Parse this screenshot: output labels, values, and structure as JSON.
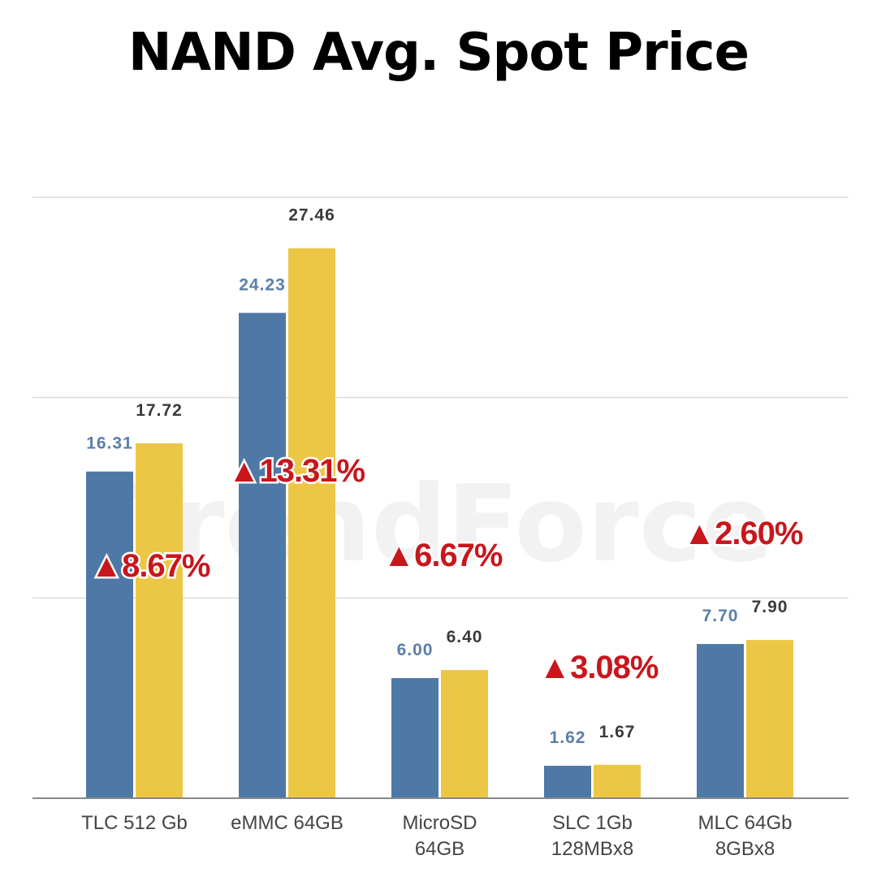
{
  "title": "NAND Avg. Spot Price",
  "watermark": "TrendForce",
  "colors": {
    "series_previous": "#4e79a7",
    "series_current": "#ecc745",
    "label_previous": "#5a7fa8",
    "label_current": "#3a3a3a",
    "change_text": "#c8161d",
    "gridline": "#dcdcdc",
    "axis": "#888888"
  },
  "chart_data": {
    "type": "bar",
    "title": "NAND Avg. Spot Price",
    "xlabel": "",
    "ylabel": "",
    "ylim": [
      0,
      30
    ],
    "grid": true,
    "legend": "none",
    "categories": [
      [
        "TLC 512 Gb"
      ],
      [
        "eMMC 64GB"
      ],
      [
        "MicroSD",
        "64GB"
      ],
      [
        "SLC 1Gb",
        "128MBx8"
      ],
      [
        "MLC 64Gb",
        "8GBx8"
      ]
    ],
    "series": [
      {
        "values": [
          16.31,
          24.23,
          6.0,
          1.62,
          7.7
        ],
        "labels": [
          "16.31",
          "24.23",
          "6.00",
          "1.62",
          "7.70"
        ]
      },
      {
        "values": [
          17.72,
          27.46,
          6.4,
          1.67,
          7.9
        ],
        "labels": [
          "17.72",
          "27.46",
          "6.40",
          "1.67",
          "7.90"
        ]
      }
    ],
    "changes": [
      "▲8.67%",
      "▲13.31%",
      "▲6.67%",
      "▲3.08%",
      "▲2.60%"
    ]
  }
}
